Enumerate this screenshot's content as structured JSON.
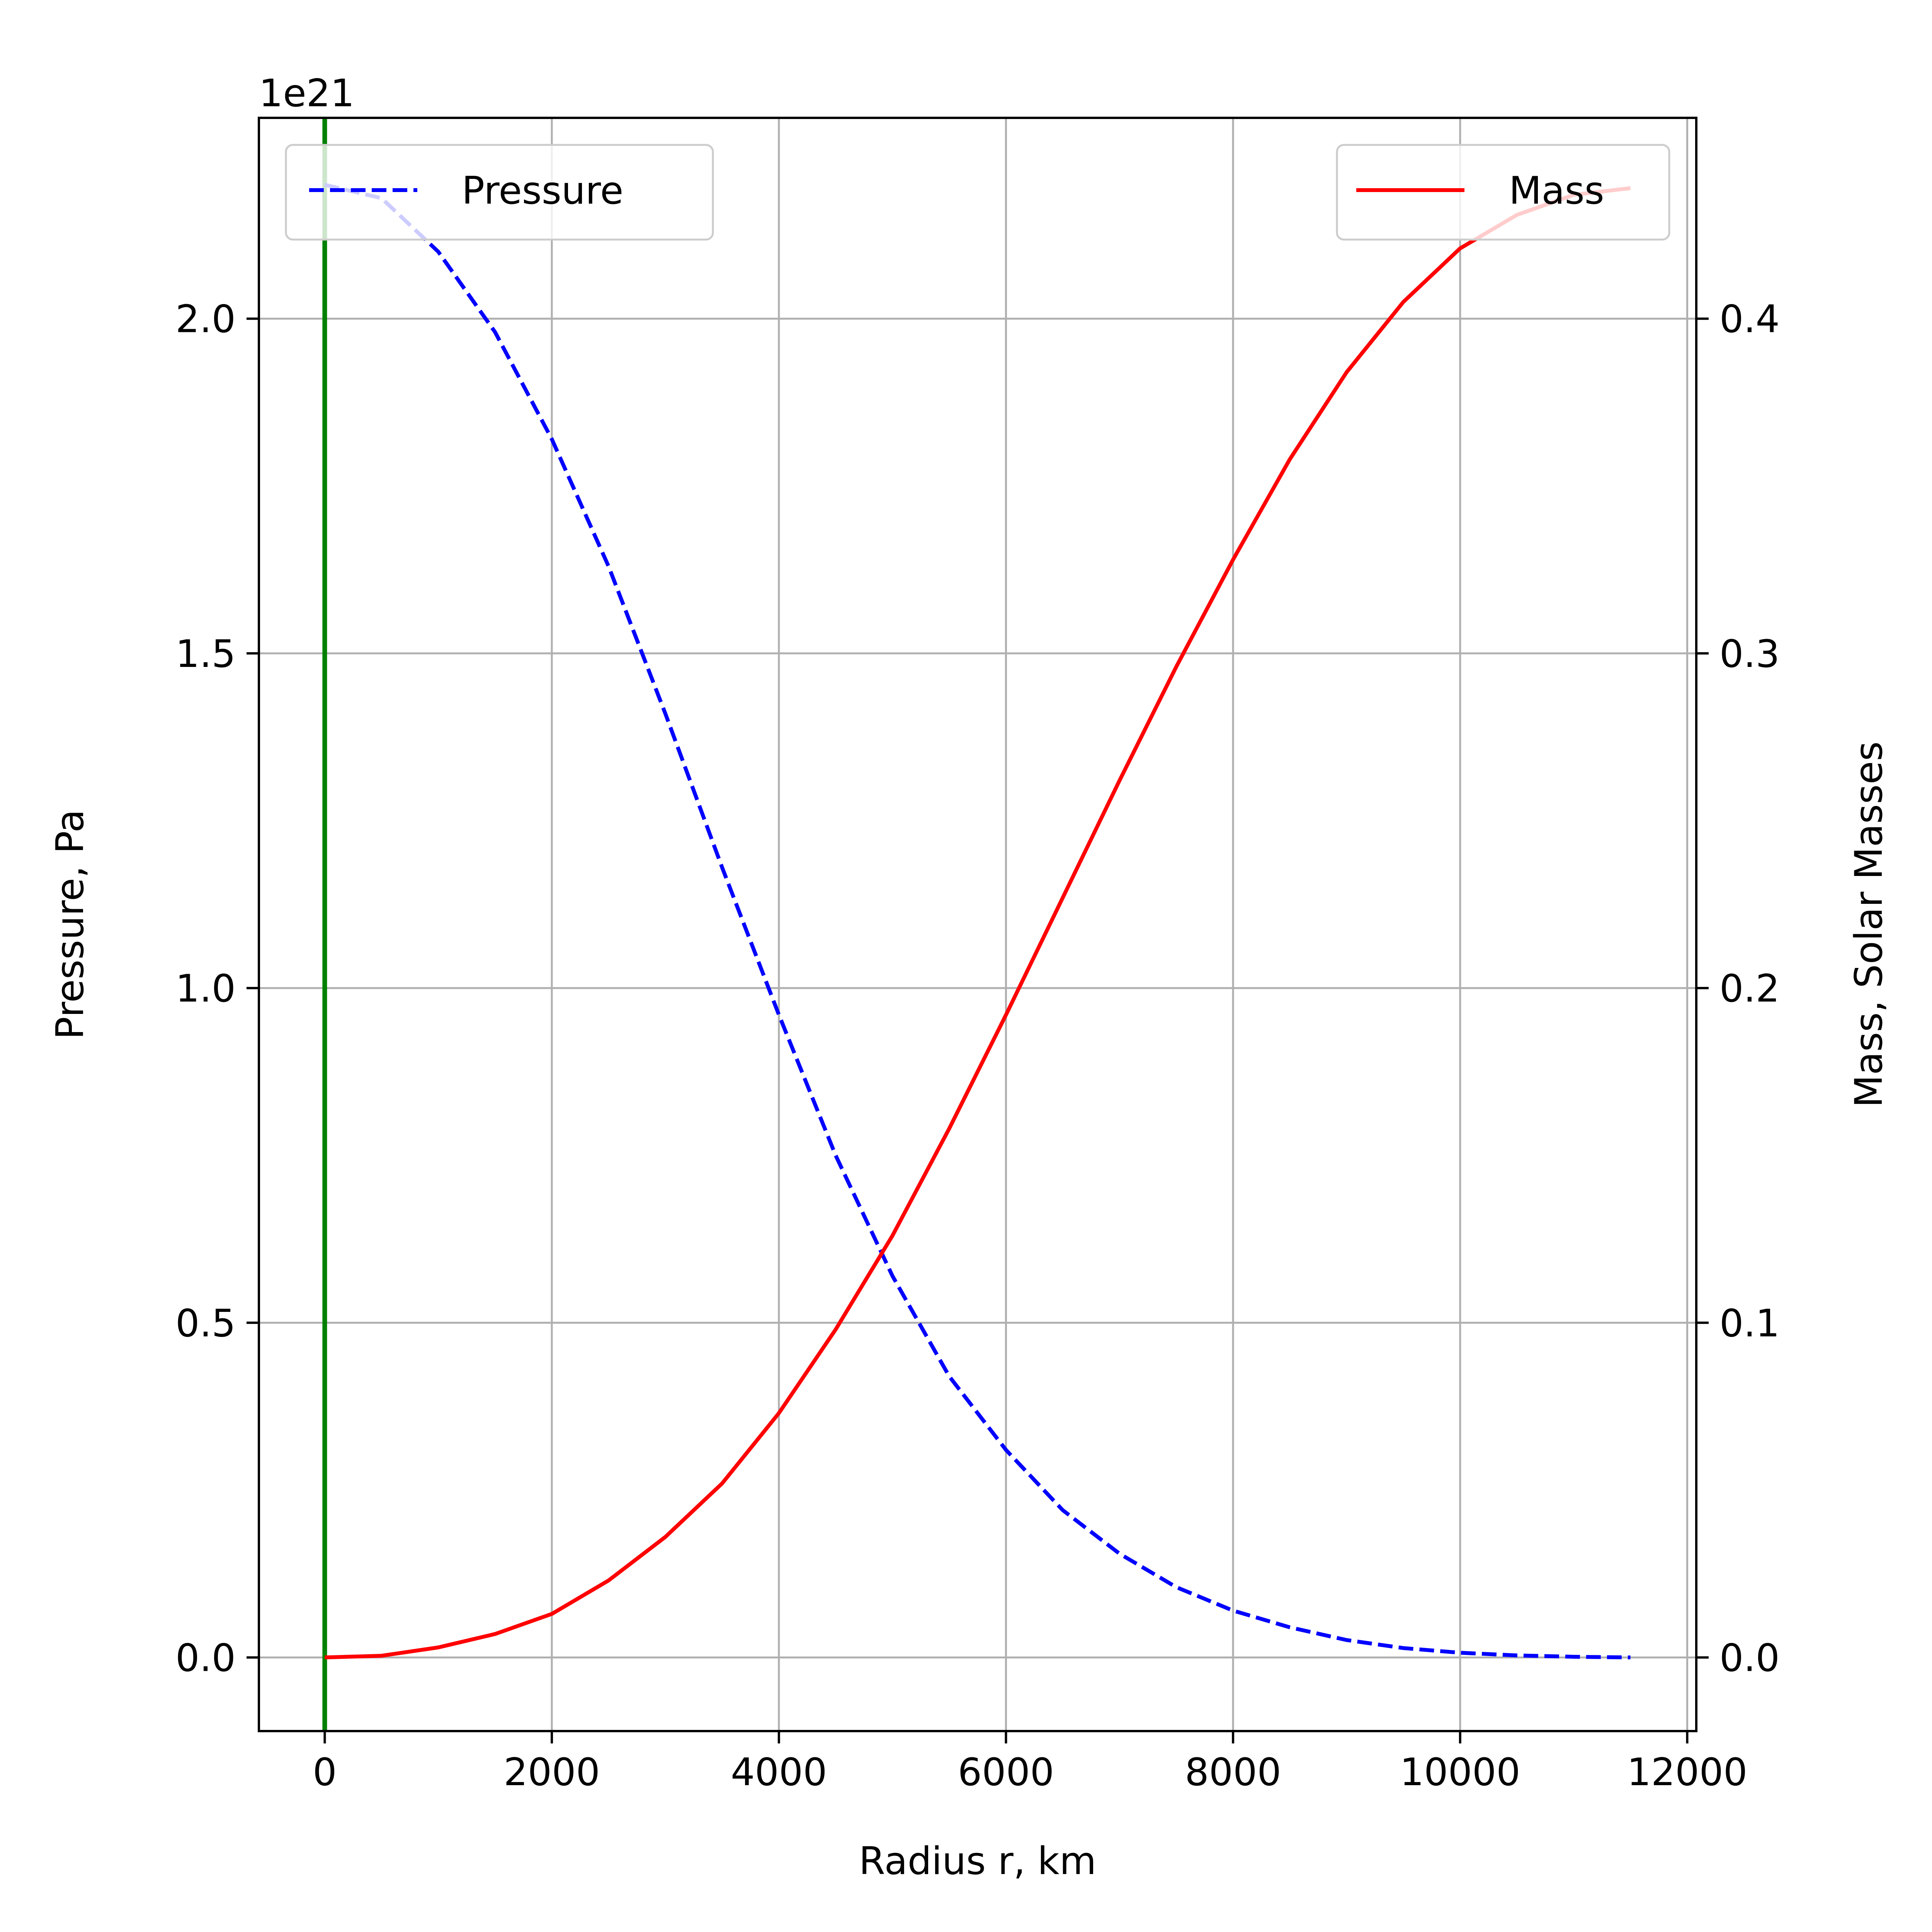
{
  "chart_data": {
    "type": "line",
    "xlabel": "Radius r, km",
    "ylabel_left": "Pressure, Pa",
    "ylabel_right": "Mass, Solar Masses",
    "offset_label": "1e21",
    "xlim": [
      -580,
      12080
    ],
    "ylim_left": [
      -0.11,
      2.3
    ],
    "ylim_right": [
      -0.022,
      0.46
    ],
    "x_ticks": [
      0,
      2000,
      4000,
      6000,
      8000,
      10000,
      12000
    ],
    "x_tick_labels": [
      "0",
      "2000",
      "4000",
      "6000",
      "8000",
      "10000",
      "12000"
    ],
    "y_ticks_left": [
      0.0,
      0.5,
      1.0,
      1.5,
      2.0
    ],
    "y_tick_labels_left": [
      "0.0",
      "0.5",
      "1.0",
      "1.5",
      "2.0"
    ],
    "y_ticks_right": [
      0.0,
      0.1,
      0.2,
      0.3,
      0.4
    ],
    "y_tick_labels_right": [
      "0.0",
      "0.1",
      "0.2",
      "0.3",
      "0.4"
    ],
    "grid": true,
    "vline": {
      "x": 0,
      "color": "#008000"
    },
    "series": [
      {
        "name": "Pressure",
        "axis": "left",
        "color": "#0000ff",
        "style": "dashed",
        "legend_position": "top-left",
        "x": [
          0,
          500,
          1000,
          1500,
          2000,
          2500,
          3000,
          3500,
          4000,
          4500,
          5000,
          5500,
          6000,
          6500,
          7000,
          7500,
          8000,
          8500,
          9000,
          9500,
          10000,
          10500,
          11000,
          11500
        ],
        "y": [
          2.2,
          2.18,
          2.1,
          1.98,
          1.82,
          1.63,
          1.41,
          1.18,
          0.96,
          0.75,
          0.57,
          0.42,
          0.31,
          0.22,
          0.155,
          0.105,
          0.07,
          0.045,
          0.026,
          0.014,
          0.007,
          0.003,
          0.001,
          0.0
        ]
      },
      {
        "name": "Mass",
        "axis": "right",
        "color": "#ff0000",
        "style": "solid",
        "legend_position": "top-right",
        "x": [
          0,
          500,
          1000,
          1500,
          2000,
          2500,
          3000,
          3500,
          4000,
          4500,
          5000,
          5500,
          6000,
          6500,
          7000,
          7500,
          8000,
          8500,
          9000,
          9500,
          10000,
          10500,
          11000,
          11500
        ],
        "y": [
          0.0,
          0.0005,
          0.003,
          0.007,
          0.013,
          0.023,
          0.036,
          0.052,
          0.073,
          0.098,
          0.126,
          0.158,
          0.192,
          0.227,
          0.262,
          0.296,
          0.328,
          0.358,
          0.384,
          0.405,
          0.421,
          0.431,
          0.437,
          0.439
        ]
      }
    ]
  }
}
